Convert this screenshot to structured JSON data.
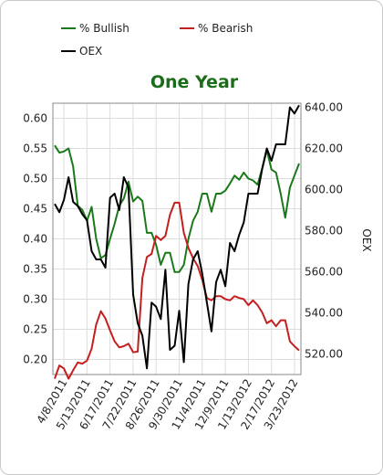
{
  "chart_data": {
    "type": "line",
    "title": "One Year",
    "legend": [
      {
        "name": "% Bullish",
        "color": "#1a7a1a"
      },
      {
        "name": "% Bearish",
        "color": "#c41e1e"
      },
      {
        "name": "OEX",
        "color": "#000000"
      }
    ],
    "legend_placement": "top",
    "y_left": {
      "ylim": [
        0.175,
        0.625
      ],
      "ticks": [
        "0.20",
        "0.25",
        "0.30",
        "0.35",
        "0.40",
        "0.45",
        "0.50",
        "0.55",
        "0.60"
      ]
    },
    "y_right": {
      "label": "OEX",
      "ylim": [
        510,
        642
      ],
      "ticks": [
        "520.00",
        "540.00",
        "560.00",
        "580.00",
        "600.00",
        "620.00",
        "640.00"
      ]
    },
    "x_ticks": [
      "4/8/2011",
      "5/13/2011",
      "6/17/2011",
      "7/22/2011",
      "8/26/2011",
      "9/30/2011",
      "11/4/2011",
      "12/9/2011",
      "1/13/2012",
      "2/17/2012",
      "3/23/2012"
    ],
    "series": [
      {
        "name": "% Bullish",
        "color": "#1a7a1a",
        "values": [
          0.555,
          0.543,
          0.545,
          0.55,
          0.52,
          0.455,
          0.448,
          0.43,
          0.453,
          0.4,
          0.368,
          0.373,
          0.4,
          0.425,
          0.455,
          0.467,
          0.495,
          0.462,
          0.47,
          0.463,
          0.41,
          0.41,
          0.39,
          0.357,
          0.377,
          0.377,
          0.345,
          0.345,
          0.357,
          0.4,
          0.43,
          0.445,
          0.475,
          0.475,
          0.445,
          0.475,
          0.475,
          0.48,
          0.492,
          0.505,
          0.498,
          0.51,
          0.5,
          0.497,
          0.49,
          0.517,
          0.547,
          0.515,
          0.51,
          0.475,
          0.435,
          0.485,
          0.505,
          0.525
        ]
      },
      {
        "name": "% Bearish",
        "color": "#c41e1e",
        "values": [
          0.168,
          0.19,
          0.185,
          0.168,
          0.182,
          0.195,
          0.193,
          0.198,
          0.218,
          0.258,
          0.28,
          0.268,
          0.248,
          0.23,
          0.22,
          0.222,
          0.226,
          0.212,
          0.213,
          0.335,
          0.37,
          0.375,
          0.405,
          0.398,
          0.405,
          0.44,
          0.46,
          0.46,
          0.41,
          0.385,
          0.368,
          0.355,
          0.332,
          0.302,
          0.298,
          0.305,
          0.305,
          0.3,
          0.298,
          0.305,
          0.302,
          0.3,
          0.29,
          0.298,
          0.29,
          0.278,
          0.26,
          0.265,
          0.255,
          0.265,
          0.265,
          0.23,
          0.222,
          0.215
        ]
      },
      {
        "name": "OEX",
        "color": "#000000",
        "values": [
          593,
          589,
          595,
          606,
          594,
          592,
          588,
          585,
          570,
          566,
          566,
          562,
          596,
          598,
          590,
          606,
          601,
          549,
          535,
          529,
          513,
          545,
          543,
          537,
          561,
          522,
          524,
          541,
          516,
          554,
          566,
          570,
          559,
          545,
          531,
          555,
          561,
          553,
          574,
          570,
          578,
          584,
          598,
          598,
          598,
          610,
          620,
          614,
          622,
          622,
          622,
          640,
          637,
          641
        ]
      }
    ]
  }
}
